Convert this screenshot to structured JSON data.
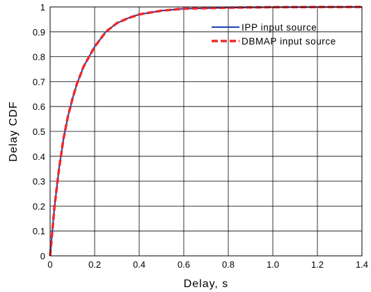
{
  "chart_data": {
    "type": "line",
    "title": "",
    "xlabel": "Delay, s",
    "ylabel": "Delay CDF",
    "xlim": [
      0,
      1.4
    ],
    "ylim": [
      0,
      1
    ],
    "xticks": [
      "0",
      "0.2",
      "0.4",
      "0.6",
      "0.8",
      "1.0",
      "1.2",
      "1.4"
    ],
    "yticks": [
      "0",
      "0.1",
      "0.2",
      "0.3",
      "0.4",
      "0.5",
      "0.6",
      "0.7",
      "0.8",
      "0.9",
      "1"
    ],
    "grid": true,
    "legend_position": "top-right",
    "series": [
      {
        "name": "IPP input source",
        "color": "#1f3fb0",
        "style": "solid",
        "x": [
          0,
          0.01,
          0.02,
          0.04,
          0.06,
          0.08,
          0.1,
          0.12,
          0.15,
          0.2,
          0.25,
          0.3,
          0.35,
          0.4,
          0.5,
          0.6,
          0.8,
          1.0,
          1.2,
          1.4
        ],
        "y": [
          0,
          0.1,
          0.2,
          0.35,
          0.47,
          0.56,
          0.63,
          0.69,
          0.76,
          0.84,
          0.9,
          0.935,
          0.955,
          0.97,
          0.985,
          0.993,
          0.997,
          0.999,
          0.9995,
          1.0
        ]
      },
      {
        "name": "DBMAP input source",
        "color": "#ee2a2a",
        "style": "dashed",
        "x": [
          0,
          0.01,
          0.02,
          0.04,
          0.06,
          0.08,
          0.1,
          0.12,
          0.15,
          0.2,
          0.25,
          0.3,
          0.35,
          0.4,
          0.5,
          0.6,
          0.8,
          1.0,
          1.2,
          1.4
        ],
        "y": [
          0,
          0.1,
          0.2,
          0.35,
          0.47,
          0.56,
          0.63,
          0.69,
          0.76,
          0.84,
          0.9,
          0.935,
          0.955,
          0.97,
          0.985,
          0.993,
          0.997,
          0.999,
          0.9995,
          1.0
        ]
      }
    ]
  }
}
